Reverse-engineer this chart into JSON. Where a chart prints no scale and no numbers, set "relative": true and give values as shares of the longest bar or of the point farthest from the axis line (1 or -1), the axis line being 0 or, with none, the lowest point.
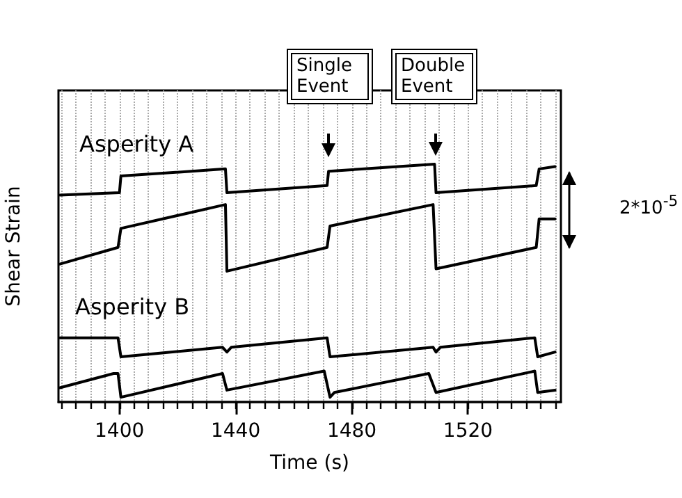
{
  "chart_data": {
    "type": "line",
    "relative": true,
    "xlabel": "Time (s)",
    "ylabel": "Shear Strain",
    "xlim": [
      1379,
      1552
    ],
    "xticks": [
      1400,
      1440,
      1480,
      1520
    ],
    "grid": "x",
    "marker": "none",
    "line_style": "solid",
    "annotations": [
      "Asperity A",
      "Asperity B",
      "2*10$^{-5}$",
      "Single Event",
      "Double Event"
    ],
    "series": [
      {
        "color": "#000000",
        "x": [
          1379.5,
          1400,
          1400.5,
          1436.5,
          1437,
          1471.5,
          1472,
          1508.5,
          1509,
          1543.5,
          1544.5,
          1550
        ],
        "values": [
          0.87,
          0.88,
          0.95,
          0.98,
          0.88,
          0.91,
          0.97,
          1,
          0.88,
          0.91,
          0.98,
          0.99
        ]
      },
      {
        "color": "#000000",
        "x": [
          1379.5,
          1399.5,
          1400.5,
          1436.5,
          1437,
          1471.5,
          1472.5,
          1508,
          1509,
          1543.5,
          1544.5,
          1550
        ],
        "values": [
          0.58,
          0.65,
          0.73,
          0.83,
          0.55,
          0.65,
          0.74,
          0.83,
          0.56,
          0.65,
          0.77,
          0.77
        ]
      },
      {
        "color": "#000000",
        "x": [
          1379.5,
          1399.5,
          1400.5,
          1435.5,
          1437,
          1438.5,
          1471.5,
          1472.5,
          1508,
          1509,
          1510.5,
          1543,
          1544,
          1550
        ],
        "values": [
          0.27,
          0.27,
          0.19,
          0.23,
          0.21,
          0.23,
          0.27,
          0.19,
          0.23,
          0.21,
          0.23,
          0.27,
          0.19,
          0.21
        ]
      },
      {
        "color": "#000000",
        "x": [
          1379.5,
          1398,
          1399.5,
          1400.5,
          1435.5,
          1437,
          1470.5,
          1472.5,
          1474,
          1506.5,
          1509,
          1543,
          1544,
          1550
        ],
        "values": [
          0.06,
          0.12,
          0.12,
          0.02,
          0.12,
          0.05,
          0.13,
          0.02,
          0.04,
          0.12,
          0.04,
          0.13,
          0.04,
          0.05
        ]
      }
    ]
  }
}
